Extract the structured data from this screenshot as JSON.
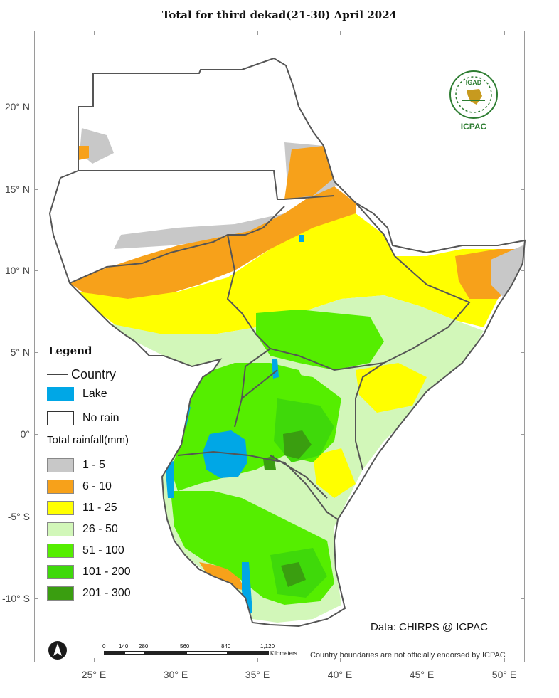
{
  "title": "Total  for third dekad(21-30) April 2024",
  "axes": {
    "lat_labels": [
      "20° N",
      "15° N",
      "10° N",
      "5° N",
      "0°",
      "-5° S",
      "-10° S"
    ],
    "lon_labels": [
      "25° E",
      "30° E",
      "35° E",
      "40° E",
      "45° E",
      "50° E"
    ]
  },
  "legend": {
    "title": "Legend",
    "country_label": "Country",
    "lake_label": "Lake",
    "no_rain_label": "No rain",
    "total_rainfall_label": "Total rainfall(mm)",
    "classes": [
      {
        "label": "1 - 5",
        "color": "#c8c8c8"
      },
      {
        "label": "6 - 10",
        "color": "#f7a11a"
      },
      {
        "label": "11 - 25",
        "color": "#ffff00"
      },
      {
        "label": "26 - 50",
        "color": "#d2f7b9"
      },
      {
        "label": "51 - 100",
        "color": "#55ee00"
      },
      {
        "label": "101 - 200",
        "color": "#3fd90a"
      },
      {
        "label": "201 - 300",
        "color": "#3a9e10"
      }
    ],
    "lake_color": "#00a7e6",
    "no_rain_color": "#ffffff",
    "country_line_color": "#555555"
  },
  "data_credit": "Data: CHIRPS @ ICPAC",
  "boundary_note": "Country boundaries are not officially endorsed by ICPAC",
  "scale": {
    "labels": [
      "0",
      "140",
      "280",
      "560",
      "840",
      "1,120"
    ],
    "unit": "Kilometers"
  },
  "logo": {
    "top_text": "IGAD",
    "bottom_text": "ICPAC"
  },
  "north_arrow_icon": "north-arrow-icon"
}
